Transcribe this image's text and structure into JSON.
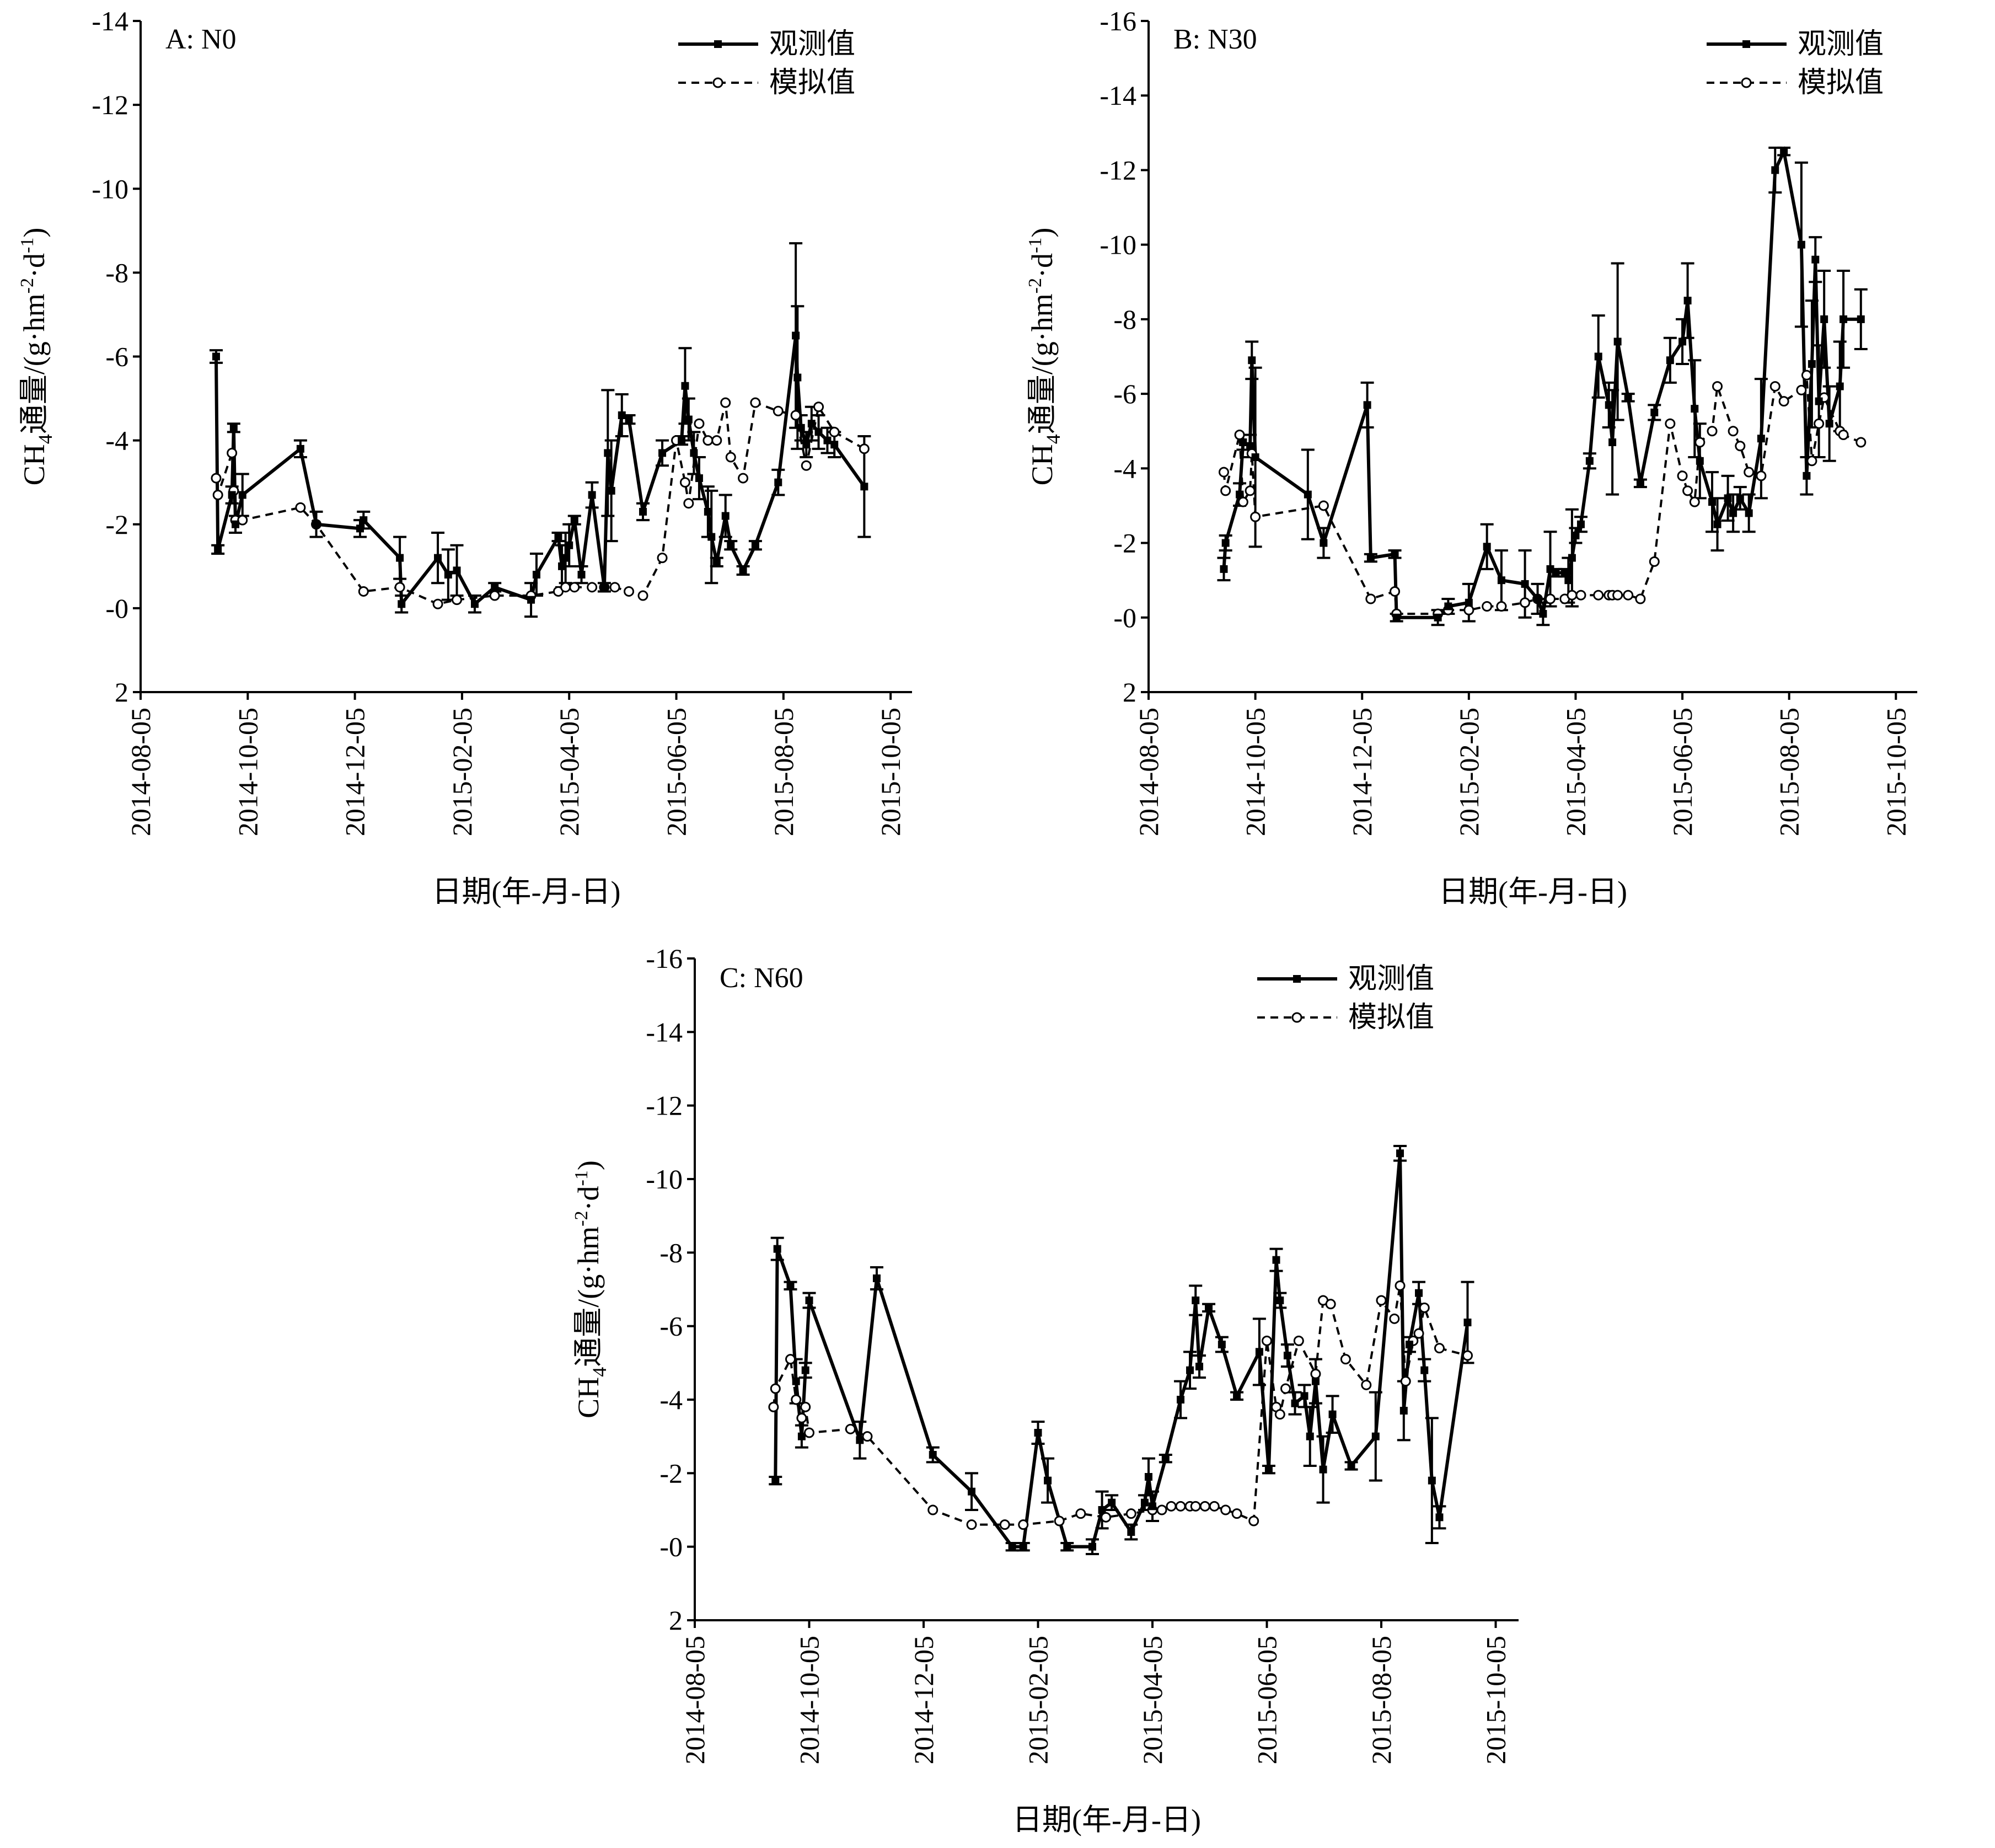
{
  "x_axis_title": "日期(年-月-日)",
  "y_axis_title_prefix": "CH",
  "y_axis_title_sub": "4",
  "y_axis_title_main": "通量/(g·hm",
  "y_axis_title_sup1": "-2",
  "y_axis_title_mid": "·d",
  "y_axis_title_sup2": "-1",
  "y_axis_title_end": ")",
  "legend": {
    "observed": "观测值",
    "simulated": "模拟值"
  },
  "chart_data": [
    {
      "panel": "A: N0",
      "type": "line",
      "x_ticks": [
        "2014-08-05",
        "2014-10-05",
        "2014-12-05",
        "2015-02-05",
        "2015-04-05",
        "2015-06-05",
        "2015-08-05",
        "2015-10-05"
      ],
      "y_ticks": [
        "-14",
        "-12",
        "-10",
        "-8",
        "-6",
        "-4",
        "-2",
        "-0",
        "2"
      ],
      "ylim": [
        2,
        -14
      ],
      "series": [
        {
          "name": "观测值",
          "x": [
            "2014-09-17",
            "2014-09-18",
            "2014-09-26",
            "2014-09-27",
            "2014-09-28",
            "2014-10-02",
            "2014-11-04",
            "2014-11-13",
            "2014-12-08",
            "2014-12-10",
            "2014-12-31",
            "2015-01-01",
            "2015-01-22",
            "2015-01-28",
            "2015-02-02",
            "2015-02-12",
            "2015-02-23",
            "2015-03-15",
            "2015-03-18",
            "2015-03-30",
            "2015-04-01",
            "2015-04-03",
            "2015-04-05",
            "2015-04-08",
            "2015-04-12",
            "2015-04-18",
            "2015-04-25",
            "2015-04-27",
            "2015-04-29",
            "2015-05-05",
            "2015-05-09",
            "2015-05-17",
            "2015-05-28",
            "2015-06-08",
            "2015-06-10",
            "2015-06-12",
            "2015-06-15",
            "2015-06-18",
            "2015-06-23",
            "2015-06-25",
            "2015-06-28",
            "2015-07-03",
            "2015-07-06",
            "2015-07-13",
            "2015-07-20",
            "2015-08-02",
            "2015-08-12",
            "2015-08-13",
            "2015-08-15",
            "2015-08-18",
            "2015-08-21",
            "2015-08-25",
            "2015-08-30",
            "2015-09-03",
            "2015-09-20"
          ],
          "values": [
            -6.0,
            -1.4,
            -2.7,
            -4.3,
            -2.0,
            -2.7,
            -3.8,
            -2.0,
            -1.9,
            -2.1,
            -1.2,
            -0.1,
            -1.2,
            -0.8,
            -0.9,
            -0.1,
            -0.5,
            -0.2,
            -0.8,
            -1.7,
            -1.0,
            -1.2,
            -1.5,
            -2.1,
            -0.8,
            -2.7,
            -0.5,
            -3.7,
            -2.8,
            -4.6,
            -4.5,
            -2.3,
            -3.7,
            -4.0,
            -5.3,
            -4.5,
            -3.7,
            -3.1,
            -2.3,
            -1.7,
            -1.1,
            -2.2,
            -1.5,
            -0.9,
            -1.5,
            -3.0,
            -6.5,
            -5.5,
            -4.3,
            -3.9,
            -4.4,
            -4.2,
            -4.0,
            -3.9,
            -2.9
          ],
          "errors": [
            0.15,
            0.1,
            0.2,
            0.1,
            0.2,
            0.5,
            0.2,
            0.3,
            0.2,
            0.2,
            0.5,
            0.2,
            0.6,
            0.6,
            0.6,
            0.2,
            0.1,
            0.4,
            0.5,
            0.1,
            0.5,
            0.6,
            0.5,
            0.1,
            0.2,
            0.3,
            0.1,
            1.5,
            1.2,
            0.5,
            0.1,
            0.2,
            0.3,
            0.1,
            0.9,
            0.5,
            0.5,
            0.5,
            0.6,
            1.1,
            0.1,
            0.5,
            0.1,
            0.1,
            0.1,
            0.3,
            2.2,
            1.7,
            0.3,
            0.3,
            0.4,
            0.4,
            0.3,
            0.3,
            1.2
          ]
        },
        {
          "name": "模拟值",
          "x": [
            "2014-09-17",
            "2014-09-18",
            "2014-09-26",
            "2014-09-27",
            "2014-09-28",
            "2014-10-02",
            "2014-11-04",
            "2014-11-13",
            "2014-12-10",
            "2014-12-31",
            "2015-01-22",
            "2015-02-02",
            "2015-02-23",
            "2015-03-15",
            "2015-03-30",
            "2015-04-03",
            "2015-04-08",
            "2015-04-18",
            "2015-04-25",
            "2015-05-01",
            "2015-05-09",
            "2015-05-17",
            "2015-05-28",
            "2015-06-05",
            "2015-06-10",
            "2015-06-12",
            "2015-06-18",
            "2015-06-23",
            "2015-06-28",
            "2015-07-03",
            "2015-07-06",
            "2015-07-13",
            "2015-07-20",
            "2015-08-02",
            "2015-08-12",
            "2015-08-18",
            "2015-08-25",
            "2015-09-03",
            "2015-09-20"
          ],
          "values": [
            -3.1,
            -2.7,
            -3.7,
            -2.8,
            -2.1,
            -2.1,
            -2.4,
            -2.0,
            -0.4,
            -0.5,
            -0.1,
            -0.2,
            -0.3,
            -0.3,
            -0.4,
            -0.5,
            -0.5,
            -0.5,
            -0.5,
            -0.5,
            -0.4,
            -0.3,
            -1.2,
            -4.0,
            -3.0,
            -2.5,
            -4.4,
            -4.0,
            -4.0,
            -4.9,
            -3.6,
            -3.1,
            -4.9,
            -4.7,
            -4.6,
            -3.4,
            -4.8,
            -4.2,
            -3.8
          ]
        }
      ]
    },
    {
      "panel": "B: N30",
      "type": "line",
      "x_ticks": [
        "2014-08-05",
        "2014-10-05",
        "2014-12-05",
        "2015-02-05",
        "2015-04-05",
        "2015-06-05",
        "2015-08-05",
        "2015-10-05"
      ],
      "y_ticks": [
        "-16",
        "-14",
        "-12",
        "-10",
        "-8",
        "-6",
        "-4",
        "-2",
        "-0",
        "2"
      ],
      "ylim": [
        2,
        -16
      ],
      "series": [
        {
          "name": "观测值",
          "x": [
            "2014-09-17",
            "2014-09-18",
            "2014-09-26",
            "2014-09-28",
            "2014-10-02",
            "2014-10-03",
            "2014-10-05",
            "2014-11-04",
            "2014-11-13",
            "2014-12-08",
            "2014-12-10",
            "2014-12-24",
            "2014-12-25",
            "2015-01-18",
            "2015-01-24",
            "2015-02-05",
            "2015-02-15",
            "2015-02-23",
            "2015-03-08",
            "2015-03-15",
            "2015-03-18",
            "2015-03-22",
            "2015-03-25",
            "2015-03-30",
            "2015-04-01",
            "2015-04-03",
            "2015-04-05",
            "2015-04-08",
            "2015-04-13",
            "2015-04-18",
            "2015-04-24",
            "2015-04-26",
            "2015-04-29",
            "2015-05-05",
            "2015-05-12",
            "2015-05-20",
            "2015-05-29",
            "2015-06-05",
            "2015-06-08",
            "2015-06-12",
            "2015-06-15",
            "2015-06-22",
            "2015-06-25",
            "2015-07-01",
            "2015-07-04",
            "2015-07-08",
            "2015-07-13",
            "2015-07-20",
            "2015-07-28",
            "2015-08-02",
            "2015-08-12",
            "2015-08-15",
            "2015-08-18",
            "2015-08-20",
            "2015-08-22",
            "2015-08-25",
            "2015-08-28",
            "2015-09-03",
            "2015-09-05",
            "2015-09-15"
          ],
          "values": [
            -1.3,
            -2.0,
            -3.3,
            -4.7,
            -4.6,
            -6.9,
            -4.3,
            -3.3,
            -2.0,
            -5.7,
            -1.6,
            -1.7,
            -0.0,
            -0.0,
            -0.3,
            -0.4,
            -1.9,
            -1.0,
            -0.9,
            -0.5,
            -0.1,
            -1.3,
            -1.2,
            -1.2,
            -1.0,
            -1.6,
            -2.2,
            -2.5,
            -4.2,
            -7.0,
            -5.7,
            -4.7,
            -7.4,
            -5.9,
            -3.6,
            -5.5,
            -6.9,
            -7.4,
            -8.5,
            -5.6,
            -4.2,
            -3.1,
            -2.5,
            -3.2,
            -2.8,
            -3.2,
            -2.8,
            -4.8,
            -12.0,
            -12.5,
            -10.0,
            -3.8,
            -6.8,
            -9.6,
            -5.8,
            -8.0,
            -5.2,
            -6.2,
            -8.0,
            -8.0
          ],
          "errors": [
            0.3,
            0.2,
            0.3,
            0.2,
            0.3,
            0.5,
            2.4,
            1.2,
            0.4,
            0.6,
            0.1,
            0.1,
            0.1,
            0.2,
            0.2,
            0.5,
            0.6,
            0.8,
            0.9,
            0.4,
            0.3,
            1.0,
            0.1,
            0.1,
            0.6,
            1.3,
            0.2,
            0.2,
            0.2,
            1.1,
            0.6,
            1.4,
            2.1,
            0.1,
            0.1,
            0.2,
            0.6,
            0.6,
            1.0,
            1.3,
            1.0,
            0.8,
            0.7,
            0.6,
            0.5,
            0.3,
            0.5,
            1.6,
            0.6,
            0.1,
            2.2,
            0.5,
            1.7,
            0.6,
            1.5,
            1.3,
            1.0,
            1.2,
            1.3,
            0.8
          ]
        },
        {
          "name": "模拟值",
          "x": [
            "2014-09-17",
            "2014-09-18",
            "2014-09-26",
            "2014-09-28",
            "2014-10-02",
            "2014-10-03",
            "2014-10-05",
            "2014-11-13",
            "2014-12-10",
            "2014-12-24",
            "2014-12-25",
            "2015-01-18",
            "2015-01-24",
            "2015-02-05",
            "2015-02-15",
            "2015-02-23",
            "2015-03-08",
            "2015-03-15",
            "2015-03-22",
            "2015-03-30",
            "2015-04-03",
            "2015-04-08",
            "2015-04-18",
            "2015-04-24",
            "2015-04-26",
            "2015-04-29",
            "2015-05-05",
            "2015-05-12",
            "2015-05-20",
            "2015-05-29",
            "2015-06-05",
            "2015-06-08",
            "2015-06-12",
            "2015-06-15",
            "2015-06-22",
            "2015-06-25",
            "2015-07-04",
            "2015-07-08",
            "2015-07-13",
            "2015-07-20",
            "2015-07-28",
            "2015-08-02",
            "2015-08-12",
            "2015-08-15",
            "2015-08-18",
            "2015-08-22",
            "2015-08-25",
            "2015-09-03",
            "2015-09-05",
            "2015-09-15"
          ],
          "values": [
            -3.9,
            -3.4,
            -4.9,
            -3.1,
            -3.4,
            -4.4,
            -2.7,
            -3.0,
            -0.5,
            -0.7,
            -0.1,
            -0.1,
            -0.2,
            -0.2,
            -0.3,
            -0.3,
            -0.4,
            -0.5,
            -0.5,
            -0.5,
            -0.6,
            -0.6,
            -0.6,
            -0.6,
            -0.6,
            -0.6,
            -0.6,
            -0.5,
            -1.5,
            -5.2,
            -3.8,
            -3.4,
            -3.1,
            -4.7,
            -5.0,
            -6.2,
            -5.0,
            -4.6,
            -3.9,
            -3.8,
            -6.2,
            -5.8,
            -6.1,
            -6.5,
            -4.2,
            -5.2,
            -5.9,
            -5.0,
            -4.9,
            -4.7
          ]
        }
      ]
    },
    {
      "panel": "C: N60",
      "type": "line",
      "x_ticks": [
        "2014-08-05",
        "2014-10-05",
        "2014-12-05",
        "2015-02-05",
        "2015-04-05",
        "2015-06-05",
        "2015-08-05",
        "2015-10-05"
      ],
      "y_ticks": [
        "-16",
        "-14",
        "-12",
        "-10",
        "-8",
        "-6",
        "-4",
        "-2",
        "-0",
        "2"
      ],
      "ylim": [
        2,
        -16
      ],
      "series": [
        {
          "name": "观测值",
          "x": [
            "2014-09-17",
            "2014-09-18",
            "2014-09-25",
            "2014-09-28",
            "2014-10-01",
            "2014-10-03",
            "2014-10-05",
            "2014-11-01",
            "2014-11-10",
            "2014-12-10",
            "2014-12-31",
            "2015-01-22",
            "2015-01-28",
            "2015-02-05",
            "2015-02-10",
            "2015-02-20",
            "2015-03-05",
            "2015-03-10",
            "2015-03-15",
            "2015-03-25",
            "2015-04-01",
            "2015-04-03",
            "2015-04-05",
            "2015-04-12",
            "2015-04-20",
            "2015-04-25",
            "2015-04-28",
            "2015-04-30",
            "2015-05-05",
            "2015-05-12",
            "2015-05-20",
            "2015-06-01",
            "2015-06-06",
            "2015-06-10",
            "2015-06-12",
            "2015-06-16",
            "2015-06-20",
            "2015-06-25",
            "2015-06-28",
            "2015-07-01",
            "2015-07-05",
            "2015-07-10",
            "2015-07-20",
            "2015-08-02",
            "2015-08-15",
            "2015-08-17",
            "2015-08-20",
            "2015-08-25",
            "2015-08-28",
            "2015-09-01",
            "2015-09-05",
            "2015-09-20"
          ],
          "values": [
            -1.8,
            -8.1,
            -7.1,
            -4.5,
            -3.0,
            -4.8,
            -6.7,
            -2.9,
            -7.3,
            -2.5,
            -1.5,
            -0.0,
            -0.0,
            -3.1,
            -1.8,
            -0.0,
            -0.0,
            -1.0,
            -1.2,
            -0.4,
            -1.2,
            -1.9,
            -1.1,
            -2.4,
            -4.0,
            -4.8,
            -6.7,
            -4.9,
            -6.5,
            -5.5,
            -4.1,
            -5.3,
            -2.1,
            -7.8,
            -6.7,
            -5.2,
            -3.9,
            -4.1,
            -3.0,
            -4.5,
            -2.1,
            -3.6,
            -2.2,
            -3.0,
            -10.7,
            -3.7,
            -5.5,
            -6.9,
            -4.8,
            -1.8,
            -0.8,
            -6.1
          ],
          "errors": [
            0.1,
            0.3,
            0.1,
            0.6,
            0.3,
            0.2,
            0.2,
            0.5,
            0.3,
            0.2,
            0.5,
            0.1,
            0.1,
            0.3,
            0.6,
            0.1,
            0.2,
            0.5,
            0.2,
            0.2,
            0.2,
            0.5,
            0.4,
            0.1,
            0.5,
            0.5,
            0.4,
            0.3,
            0.1,
            0.2,
            0.1,
            0.9,
            0.1,
            0.3,
            0.2,
            0.3,
            0.3,
            0.3,
            0.8,
            0.6,
            0.9,
            0.5,
            0.1,
            1.2,
            0.2,
            0.8,
            0.2,
            0.3,
            0.3,
            1.7,
            0.3,
            1.1
          ]
        },
        {
          "name": "模拟值",
          "x": [
            "2014-09-16",
            "2014-09-17",
            "2014-09-25",
            "2014-09-28",
            "2014-10-01",
            "2014-10-03",
            "2014-10-05",
            "2014-10-27",
            "2014-11-05",
            "2014-12-10",
            "2014-12-31",
            "2015-01-18",
            "2015-01-28",
            "2015-02-16",
            "2015-02-27",
            "2015-03-12",
            "2015-03-25",
            "2015-04-05",
            "2015-04-10",
            "2015-04-15",
            "2015-04-20",
            "2015-04-25",
            "2015-04-28",
            "2015-05-03",
            "2015-05-08",
            "2015-05-14",
            "2015-05-20",
            "2015-05-29",
            "2015-06-05",
            "2015-06-10",
            "2015-06-12",
            "2015-06-15",
            "2015-06-22",
            "2015-07-01",
            "2015-07-05",
            "2015-07-09",
            "2015-07-17",
            "2015-07-28",
            "2015-08-05",
            "2015-08-12",
            "2015-08-15",
            "2015-08-18",
            "2015-08-22",
            "2015-08-25",
            "2015-08-28",
            "2015-09-05",
            "2015-09-20"
          ],
          "values": [
            -3.8,
            -4.3,
            -5.1,
            -4.0,
            -3.5,
            -3.8,
            -3.1,
            -3.2,
            -3.0,
            -1.0,
            -0.6,
            -0.6,
            -0.6,
            -0.7,
            -0.9,
            -0.8,
            -0.9,
            -1.0,
            -1.0,
            -1.1,
            -1.1,
            -1.1,
            -1.1,
            -1.1,
            -1.1,
            -1.0,
            -0.9,
            -0.7,
            -5.6,
            -3.8,
            -3.6,
            -4.3,
            -5.6,
            -4.7,
            -6.7,
            -6.6,
            -5.1,
            -4.4,
            -6.7,
            -6.2,
            -7.1,
            -4.5,
            -5.6,
            -5.8,
            -6.5,
            -5.4,
            -5.2
          ]
        }
      ]
    }
  ]
}
